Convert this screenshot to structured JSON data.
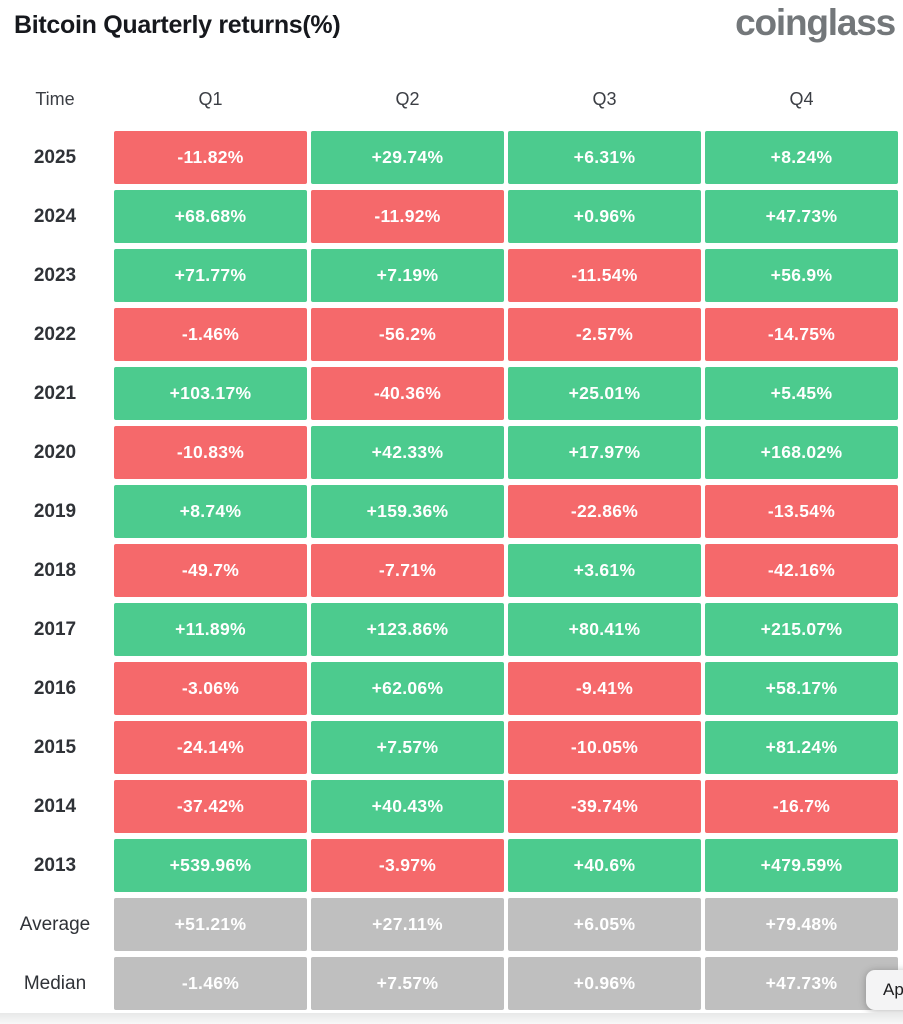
{
  "page": {
    "title": "Bitcoin Quarterly returns(%)",
    "logo_text": "coinglass"
  },
  "colors": {
    "positive": "#4ccb8e",
    "negative": "#f5696b",
    "neutral": "#bfbfbf",
    "cell_text": "#ffffff"
  },
  "table": {
    "columns": [
      "Time",
      "Q1",
      "Q2",
      "Q3",
      "Q4"
    ],
    "rows": [
      {
        "label": "2025",
        "cells": [
          {
            "text": "-11.82%",
            "tone": "negative"
          },
          {
            "text": "+29.74%",
            "tone": "positive"
          },
          {
            "text": "+6.31%",
            "tone": "positive"
          },
          {
            "text": "+8.24%",
            "tone": "positive"
          }
        ]
      },
      {
        "label": "2024",
        "cells": [
          {
            "text": "+68.68%",
            "tone": "positive"
          },
          {
            "text": "-11.92%",
            "tone": "negative"
          },
          {
            "text": "+0.96%",
            "tone": "positive"
          },
          {
            "text": "+47.73%",
            "tone": "positive"
          }
        ]
      },
      {
        "label": "2023",
        "cells": [
          {
            "text": "+71.77%",
            "tone": "positive"
          },
          {
            "text": "+7.19%",
            "tone": "positive"
          },
          {
            "text": "-11.54%",
            "tone": "negative"
          },
          {
            "text": "+56.9%",
            "tone": "positive"
          }
        ]
      },
      {
        "label": "2022",
        "cells": [
          {
            "text": "-1.46%",
            "tone": "negative"
          },
          {
            "text": "-56.2%",
            "tone": "negative"
          },
          {
            "text": "-2.57%",
            "tone": "negative"
          },
          {
            "text": "-14.75%",
            "tone": "negative"
          }
        ]
      },
      {
        "label": "2021",
        "cells": [
          {
            "text": "+103.17%",
            "tone": "positive"
          },
          {
            "text": "-40.36%",
            "tone": "negative"
          },
          {
            "text": "+25.01%",
            "tone": "positive"
          },
          {
            "text": "+5.45%",
            "tone": "positive"
          }
        ]
      },
      {
        "label": "2020",
        "cells": [
          {
            "text": "-10.83%",
            "tone": "negative"
          },
          {
            "text": "+42.33%",
            "tone": "positive"
          },
          {
            "text": "+17.97%",
            "tone": "positive"
          },
          {
            "text": "+168.02%",
            "tone": "positive"
          }
        ]
      },
      {
        "label": "2019",
        "cells": [
          {
            "text": "+8.74%",
            "tone": "positive"
          },
          {
            "text": "+159.36%",
            "tone": "positive"
          },
          {
            "text": "-22.86%",
            "tone": "negative"
          },
          {
            "text": "-13.54%",
            "tone": "negative"
          }
        ]
      },
      {
        "label": "2018",
        "cells": [
          {
            "text": "-49.7%",
            "tone": "negative"
          },
          {
            "text": "-7.71%",
            "tone": "negative"
          },
          {
            "text": "+3.61%",
            "tone": "positive"
          },
          {
            "text": "-42.16%",
            "tone": "negative"
          }
        ]
      },
      {
        "label": "2017",
        "cells": [
          {
            "text": "+11.89%",
            "tone": "positive"
          },
          {
            "text": "+123.86%",
            "tone": "positive"
          },
          {
            "text": "+80.41%",
            "tone": "positive"
          },
          {
            "text": "+215.07%",
            "tone": "positive"
          }
        ]
      },
      {
        "label": "2016",
        "cells": [
          {
            "text": "-3.06%",
            "tone": "negative"
          },
          {
            "text": "+62.06%",
            "tone": "positive"
          },
          {
            "text": "-9.41%",
            "tone": "negative"
          },
          {
            "text": "+58.17%",
            "tone": "positive"
          }
        ]
      },
      {
        "label": "2015",
        "cells": [
          {
            "text": "-24.14%",
            "tone": "negative"
          },
          {
            "text": "+7.57%",
            "tone": "positive"
          },
          {
            "text": "-10.05%",
            "tone": "negative"
          },
          {
            "text": "+81.24%",
            "tone": "positive"
          }
        ]
      },
      {
        "label": "2014",
        "cells": [
          {
            "text": "-37.42%",
            "tone": "negative"
          },
          {
            "text": "+40.43%",
            "tone": "positive"
          },
          {
            "text": "-39.74%",
            "tone": "negative"
          },
          {
            "text": "-16.7%",
            "tone": "negative"
          }
        ]
      },
      {
        "label": "2013",
        "cells": [
          {
            "text": "+539.96%",
            "tone": "positive"
          },
          {
            "text": "-3.97%",
            "tone": "negative"
          },
          {
            "text": "+40.6%",
            "tone": "positive"
          },
          {
            "text": "+479.59%",
            "tone": "positive"
          }
        ]
      },
      {
        "label": "Average",
        "cells": [
          {
            "text": "+51.21%",
            "tone": "neutral"
          },
          {
            "text": "+27.11%",
            "tone": "neutral"
          },
          {
            "text": "+6.05%",
            "tone": "neutral"
          },
          {
            "text": "+79.48%",
            "tone": "neutral"
          }
        ]
      },
      {
        "label": "Median",
        "cells": [
          {
            "text": "-1.46%",
            "tone": "neutral"
          },
          {
            "text": "+7.57%",
            "tone": "neutral"
          },
          {
            "text": "+0.96%",
            "tone": "neutral"
          },
          {
            "text": "+47.73%",
            "tone": "neutral"
          }
        ]
      }
    ]
  },
  "overlay": {
    "partial_button_label": "Ap"
  },
  "chart_data": {
    "type": "heatmap",
    "title": "Bitcoin Quarterly returns(%)",
    "columns": [
      "Q1",
      "Q2",
      "Q3",
      "Q4"
    ],
    "rows": [
      "2025",
      "2024",
      "2023",
      "2022",
      "2021",
      "2020",
      "2019",
      "2018",
      "2017",
      "2016",
      "2015",
      "2014",
      "2013",
      "Average",
      "Median"
    ],
    "values": [
      [
        -11.82,
        29.74,
        6.31,
        8.24
      ],
      [
        68.68,
        -11.92,
        0.96,
        47.73
      ],
      [
        71.77,
        7.19,
        -11.54,
        56.9
      ],
      [
        -1.46,
        -56.2,
        -2.57,
        -14.75
      ],
      [
        103.17,
        -40.36,
        25.01,
        5.45
      ],
      [
        -10.83,
        42.33,
        17.97,
        168.02
      ],
      [
        8.74,
        159.36,
        -22.86,
        -13.54
      ],
      [
        -49.7,
        -7.71,
        3.61,
        -42.16
      ],
      [
        11.89,
        123.86,
        80.41,
        215.07
      ],
      [
        -3.06,
        62.06,
        -9.41,
        58.17
      ],
      [
        -24.14,
        7.57,
        -10.05,
        81.24
      ],
      [
        -37.42,
        40.43,
        -39.74,
        -16.7
      ],
      [
        539.96,
        -3.97,
        40.6,
        479.59
      ],
      [
        51.21,
        27.11,
        6.05,
        79.48
      ],
      [
        -1.46,
        7.57,
        0.96,
        47.73
      ]
    ],
    "color_rule": "green for positive returns, red for negative returns, gray for Average/Median summary rows",
    "legend": "none",
    "grid": "white gaps between colored cells"
  }
}
